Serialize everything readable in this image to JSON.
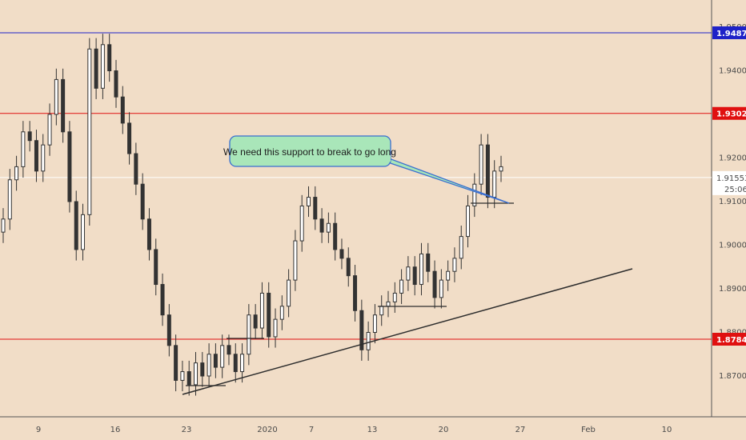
{
  "chart_data": {
    "type": "candlestick",
    "title": "",
    "xlabel": "",
    "ylabel": "",
    "x_ticks": [
      "9",
      "16",
      "23",
      "2020",
      "7",
      "13",
      "20",
      "27",
      "Feb",
      "10"
    ],
    "y_ticks": [
      "1.87000",
      "1.88000",
      "1.89000",
      "1.90000",
      "1.91000",
      "1.92000",
      "1.94000",
      "1.95000"
    ],
    "ylim": [
      1.862,
      1.957
    ],
    "grid": false,
    "price_lines": [
      {
        "value": 1.94872,
        "label": "1.94872",
        "color": "#1e22c8"
      },
      {
        "value": 1.93023,
        "label": "1.93023",
        "color": "#e01010"
      },
      {
        "value": 1.87844,
        "label": "1.87844",
        "color": "#e01010"
      }
    ],
    "current_price": {
      "value": 1.91553,
      "label": "1.91553",
      "countdown": "25:06"
    },
    "annotation": "We need this support to break to go long",
    "candle_color": "#333333",
    "closes": [
      1.906,
      1.915,
      1.918,
      1.926,
      1.924,
      1.917,
      1.923,
      1.93,
      1.938,
      1.926,
      1.91,
      1.899,
      1.907,
      1.945,
      1.936,
      1.946,
      1.94,
      1.934,
      1.928,
      1.921,
      1.914,
      1.906,
      1.899,
      1.891,
      1.884,
      1.877,
      1.869,
      1.871,
      1.868,
      1.873,
      1.87,
      1.875,
      1.872,
      1.877,
      1.875,
      1.871,
      1.875,
      1.884,
      1.881,
      1.889,
      1.879,
      1.883,
      1.886,
      1.892,
      1.901,
      1.909,
      1.911,
      1.906,
      1.903,
      1.905,
      1.899,
      1.897,
      1.893,
      1.885,
      1.876,
      1.88,
      1.884,
      1.886,
      1.887,
      1.889,
      1.892,
      1.895,
      1.891,
      1.898,
      1.894,
      1.888,
      1.892,
      1.894,
      1.897,
      1.902,
      1.909,
      1.914,
      1.923,
      1.911,
      1.917,
      1.918
    ]
  },
  "colors": {
    "background": "#f1ddc7",
    "axis_line": "#555555",
    "support_line": "#333333"
  }
}
